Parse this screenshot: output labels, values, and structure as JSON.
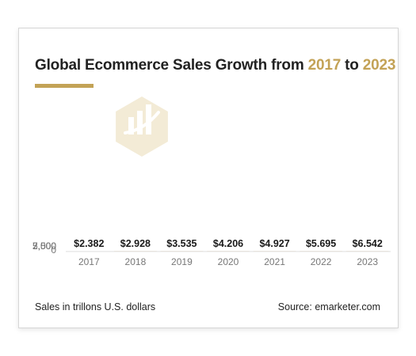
{
  "title": {
    "prefix": "Global Ecommerce Sales Growth from ",
    "start_year": "2017",
    "connector": " to ",
    "end_year": "2023"
  },
  "footer": {
    "note": "Sales in trillons U.S. dollars",
    "source": "Source: emarketer.com"
  },
  "colors": {
    "accent": "#c3a256",
    "bar": "#c3a256",
    "watermark": "#f3ebd6",
    "gridline": "#e3e3e3"
  },
  "watermark_icon": "bar-chart-growth-icon",
  "chart_data": {
    "type": "bar",
    "title": "Global Ecommerce Sales Growth from 2017 to 2023",
    "xlabel": "",
    "ylabel": "",
    "categories": [
      "2017",
      "2018",
      "2019",
      "2020",
      "2021",
      "2022",
      "2023"
    ],
    "values": [
      2.382,
      2.928,
      3.535,
      4.206,
      4.927,
      5.695,
      6.542
    ],
    "data_labels": [
      "$2.382",
      "$2.928",
      "$3.535",
      "$4.206",
      "$4.927",
      "$5.695",
      "$6.542"
    ],
    "y_ticks": [
      0,
      2500,
      5000,
      7500
    ],
    "y_tick_labels": [
      "0",
      "2,500",
      "5,000",
      "7,500"
    ],
    "ylim": [
      0,
      8000
    ],
    "grid": true
  }
}
